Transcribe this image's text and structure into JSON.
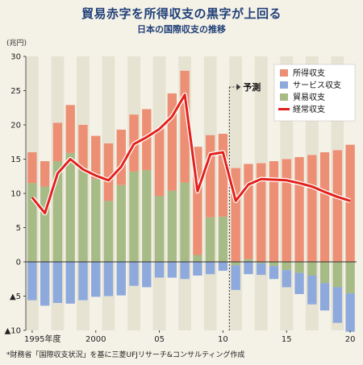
{
  "title": "貿易赤字を所得収支の黒字が上回る",
  "subtitle": "日本の国際収支の推移",
  "unit_label": "(兆円)",
  "source_note": "*財務省「国際収支状況」を基に三菱UFJリサーチ&コンサルティング作成",
  "forecast_label": "予測",
  "colors": {
    "income": "#ec8f74",
    "services": "#8ea9dc",
    "trade": "#a7bb86",
    "current": "#e2211c",
    "background": "#f4f1e6",
    "stripe": "#e7e3d3",
    "zero_line": "#333333"
  },
  "chart_data": {
    "type": "bar",
    "stacked": true,
    "title": "貿易赤字を所得収支の黒字が上回る",
    "subtitle": "日本の国際収支の推移",
    "ylabel": "(兆円)",
    "ylim": [
      -10,
      30
    ],
    "yticks": [
      30,
      25,
      20,
      15,
      10,
      5,
      0,
      -5,
      -10
    ],
    "ytick_labels": [
      "30",
      "25",
      "20",
      "15",
      "10",
      "5",
      "0",
      "▲5",
      "▲10"
    ],
    "xtick_labels": [
      {
        "index": 0,
        "label": "1995年度"
      },
      {
        "index": 5,
        "label": "2000"
      },
      {
        "index": 10,
        "label": "05"
      },
      {
        "index": 15,
        "label": "10"
      },
      {
        "index": 20,
        "label": "15"
      },
      {
        "index": 25,
        "label": "20"
      }
    ],
    "forecast_from_index": 16,
    "grid": "horizontal",
    "legend_position": "top-right",
    "categories": [
      "1995",
      "1996",
      "1997",
      "1998",
      "1999",
      "2000",
      "2001",
      "2002",
      "2003",
      "2004",
      "2005",
      "2006",
      "2007",
      "2008",
      "2009",
      "2010",
      "2011",
      "2012",
      "2013",
      "2014",
      "2015",
      "2016",
      "2017",
      "2018",
      "2019",
      "2020"
    ],
    "series": [
      {
        "name": "所得収支",
        "type": "bar",
        "values": [
          4.5,
          3.7,
          5.6,
          7.0,
          6.3,
          6.3,
          8.4,
          8.1,
          8.3,
          8.9,
          9.8,
          14.2,
          16.3,
          15.8,
          12.0,
          12.1,
          13.7,
          13.9,
          14.4,
          14.7,
          15.0,
          15.3,
          15.6,
          16.0,
          16.3,
          17.1
        ]
      },
      {
        "name": "サービス収支",
        "type": "bar",
        "values": [
          -5.6,
          -6.4,
          -6.0,
          -6.1,
          -5.6,
          -5.1,
          -5.0,
          -4.9,
          -3.5,
          -3.7,
          -2.3,
          -2.3,
          -2.5,
          -2.0,
          -1.8,
          -1.3,
          -3.6,
          -1.8,
          -1.7,
          -1.9,
          -2.5,
          -3.1,
          -4.2,
          -4.0,
          -5.2,
          -5.6
        ]
      },
      {
        "name": "貿易収支",
        "type": "bar",
        "values": [
          11.5,
          11.0,
          14.7,
          15.9,
          13.7,
          12.1,
          8.9,
          11.2,
          13.2,
          13.4,
          9.6,
          10.4,
          11.6,
          1.0,
          6.5,
          6.6,
          -0.5,
          0.4,
          -0.2,
          -0.6,
          -1.2,
          -1.6,
          -2.0,
          -3.1,
          -3.7,
          -4.6
        ]
      },
      {
        "name": "経常収支",
        "type": "line",
        "values": [
          9.4,
          7.1,
          12.9,
          15.0,
          13.5,
          12.6,
          11.9,
          13.9,
          17.2,
          18.2,
          19.4,
          21.2,
          24.4,
          10.3,
          15.7,
          16.0,
          8.9,
          11.3,
          12.1,
          12.0,
          11.9,
          11.5,
          11.0,
          10.2,
          9.5,
          8.9
        ]
      }
    ]
  }
}
